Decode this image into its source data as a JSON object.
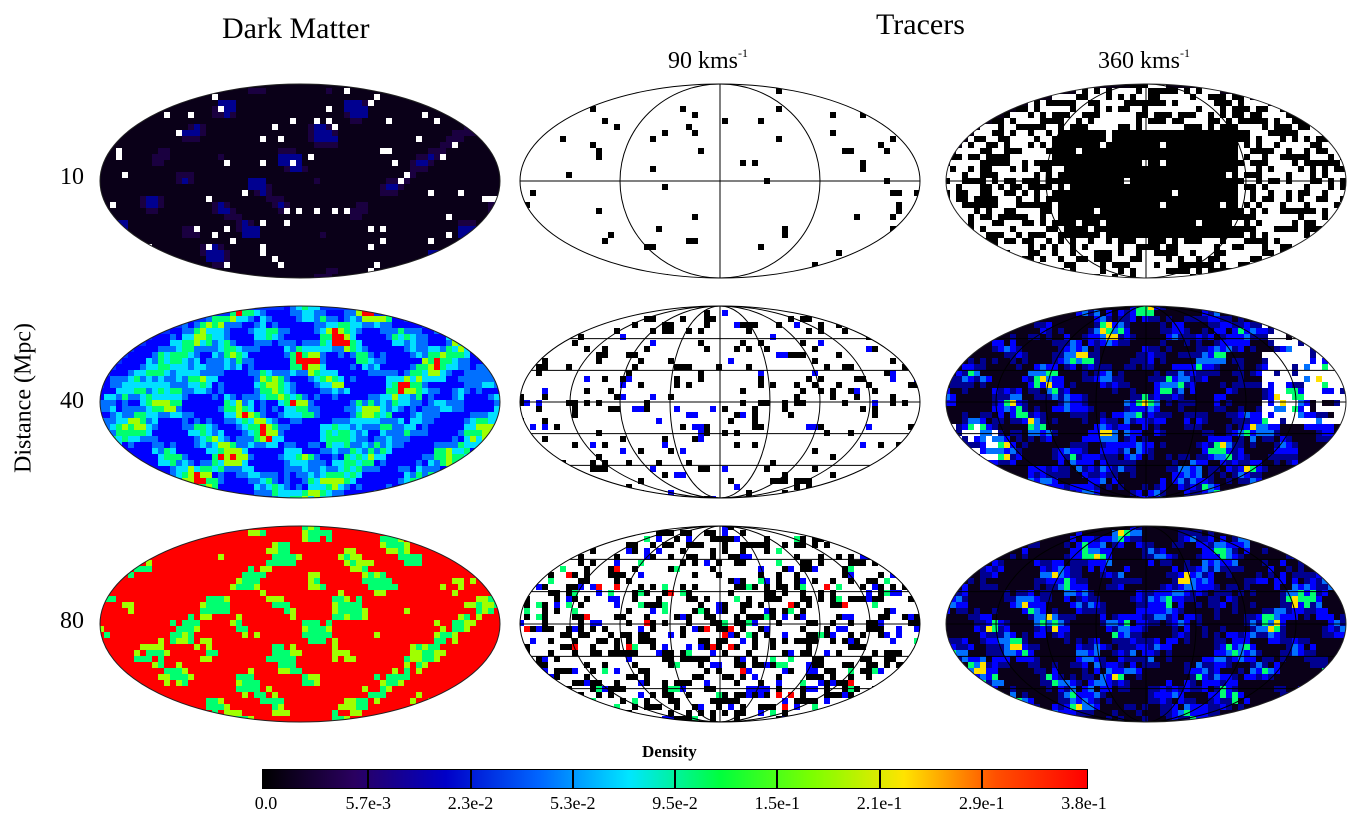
{
  "headers": {
    "dark_matter": "Dark Matter",
    "tracers": "Tracers",
    "vel_a": "90 kms",
    "vel_a_exp": "-1",
    "vel_b": "360 kms",
    "vel_b_exp": "-1"
  },
  "y_axis_label": "Distance (Mpc)",
  "rows": [
    "10",
    "40",
    "80"
  ],
  "colorbar": {
    "title": "Density",
    "ticks": [
      "0.0",
      "5.7e-3",
      "2.3e-2",
      "5.3e-2",
      "9.5e-2",
      "1.5e-1",
      "2.1e-1",
      "2.9e-1",
      "3.8e-1"
    ],
    "colors": [
      "#000000",
      "#2a0060",
      "#0000c8",
      "#0064ff",
      "#00e6ff",
      "#00ff3c",
      "#7cff00",
      "#ffe400",
      "#ff5000",
      "#ff0000"
    ]
  },
  "panels": [
    {
      "name": "dm-10",
      "kind": "dm",
      "level": 0.05
    },
    {
      "name": "tracer90-10",
      "kind": "tracer-sparse",
      "level": 0.1
    },
    {
      "name": "tracer360-10",
      "kind": "tracer-dense",
      "level": 0.1
    },
    {
      "name": "dm-40",
      "kind": "dm",
      "level": 0.45
    },
    {
      "name": "tracer90-40",
      "kind": "tracer-sparse",
      "level": 0.25
    },
    {
      "name": "tracer360-40",
      "kind": "tracer-dark",
      "level": 0.3
    },
    {
      "name": "dm-80",
      "kind": "dm",
      "level": 0.9
    },
    {
      "name": "tracer90-80",
      "kind": "tracer-sparse",
      "level": 0.55
    },
    {
      "name": "tracer360-80",
      "kind": "tracer-dark",
      "level": 0.45
    }
  ]
}
